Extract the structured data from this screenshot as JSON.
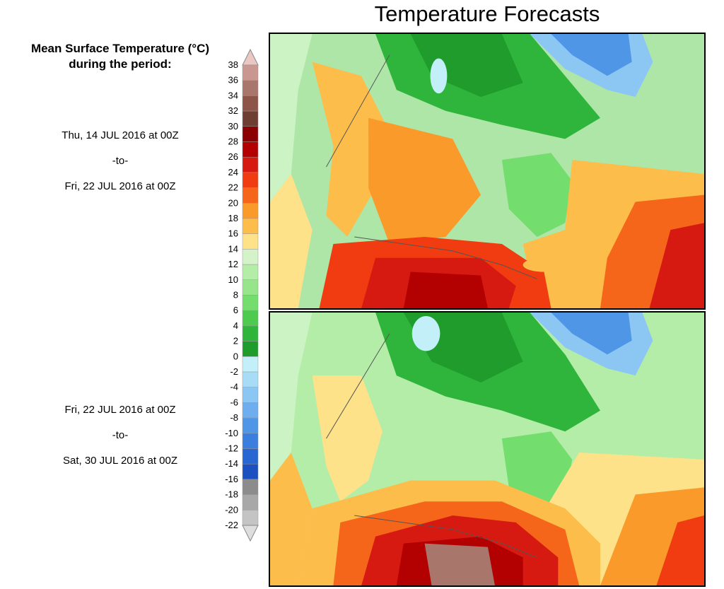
{
  "title": "Temperature Forecasts",
  "legend": {
    "title_line1": "Mean Surface Temperature (°C)",
    "title_line2": "during the period:",
    "ticks": [
      "38",
      "36",
      "34",
      "32",
      "30",
      "28",
      "26",
      "24",
      "22",
      "20",
      "18",
      "16",
      "14",
      "12",
      "10",
      "8",
      "6",
      "4",
      "2",
      "0",
      "-2",
      "-4",
      "-6",
      "-8",
      "-10",
      "-12",
      "-14",
      "-16",
      "-18",
      "-20",
      "-22"
    ],
    "colors": [
      "#ebc7c3",
      "#c9978f",
      "#a9766c",
      "#8c5548",
      "#6e3e33",
      "#8b0000",
      "#b30000",
      "#d61a12",
      "#f03c10",
      "#f5661a",
      "#fa9a2b",
      "#fcbd4a",
      "#fde28a",
      "#d5f3c9",
      "#b4eda7",
      "#96e58a",
      "#73dd6e",
      "#4ecb4e",
      "#2fb53b",
      "#1f9c2c",
      "#c3eff8",
      "#a8dcf6",
      "#8cc6f3",
      "#6eaeee",
      "#5096e6",
      "#3b7ede",
      "#2866d2",
      "#1a50c0",
      "#8c8c8c",
      "#a8a8a8",
      "#c4c4c4",
      "#dedede"
    ]
  },
  "period1": {
    "start": "Thu, 14 JUL 2016 at 00Z",
    "sep": "-to-",
    "end": "Fri, 22 JUL 2016 at 00Z"
  },
  "period2": {
    "start": "Fri, 22 JUL 2016 at 00Z",
    "sep": "-to-",
    "end": "Sat, 30 JUL 2016 at 00Z"
  }
}
